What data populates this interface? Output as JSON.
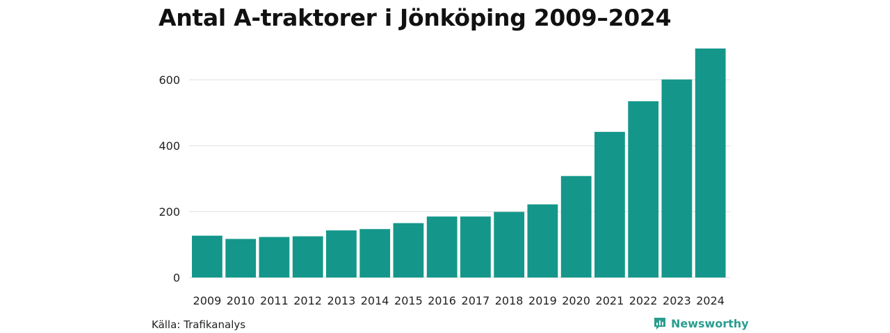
{
  "title": "Antal A-traktorer i Jönköping 2009–2024",
  "source": "Källa: Trafikanalys",
  "brand": {
    "name": "Newsworthy",
    "icon": "newsworthy-logo-icon",
    "color": "#2a9d8f"
  },
  "chart_data": {
    "type": "bar",
    "title": "Antal A-traktorer i Jönköping 2009–2024",
    "categories": [
      "2009",
      "2010",
      "2011",
      "2012",
      "2013",
      "2014",
      "2015",
      "2016",
      "2017",
      "2018",
      "2019",
      "2020",
      "2021",
      "2022",
      "2023",
      "2024"
    ],
    "values": [
      127,
      117,
      123,
      125,
      143,
      147,
      165,
      185,
      185,
      199,
      222,
      308,
      442,
      535,
      601,
      695
    ],
    "xlabel": "",
    "ylabel": "",
    "ylim": [
      0,
      700
    ],
    "yticks": [
      0,
      200,
      400,
      600
    ],
    "grid": true,
    "bar_color": "#14978a",
    "grid_color": "#dcdcdc"
  }
}
